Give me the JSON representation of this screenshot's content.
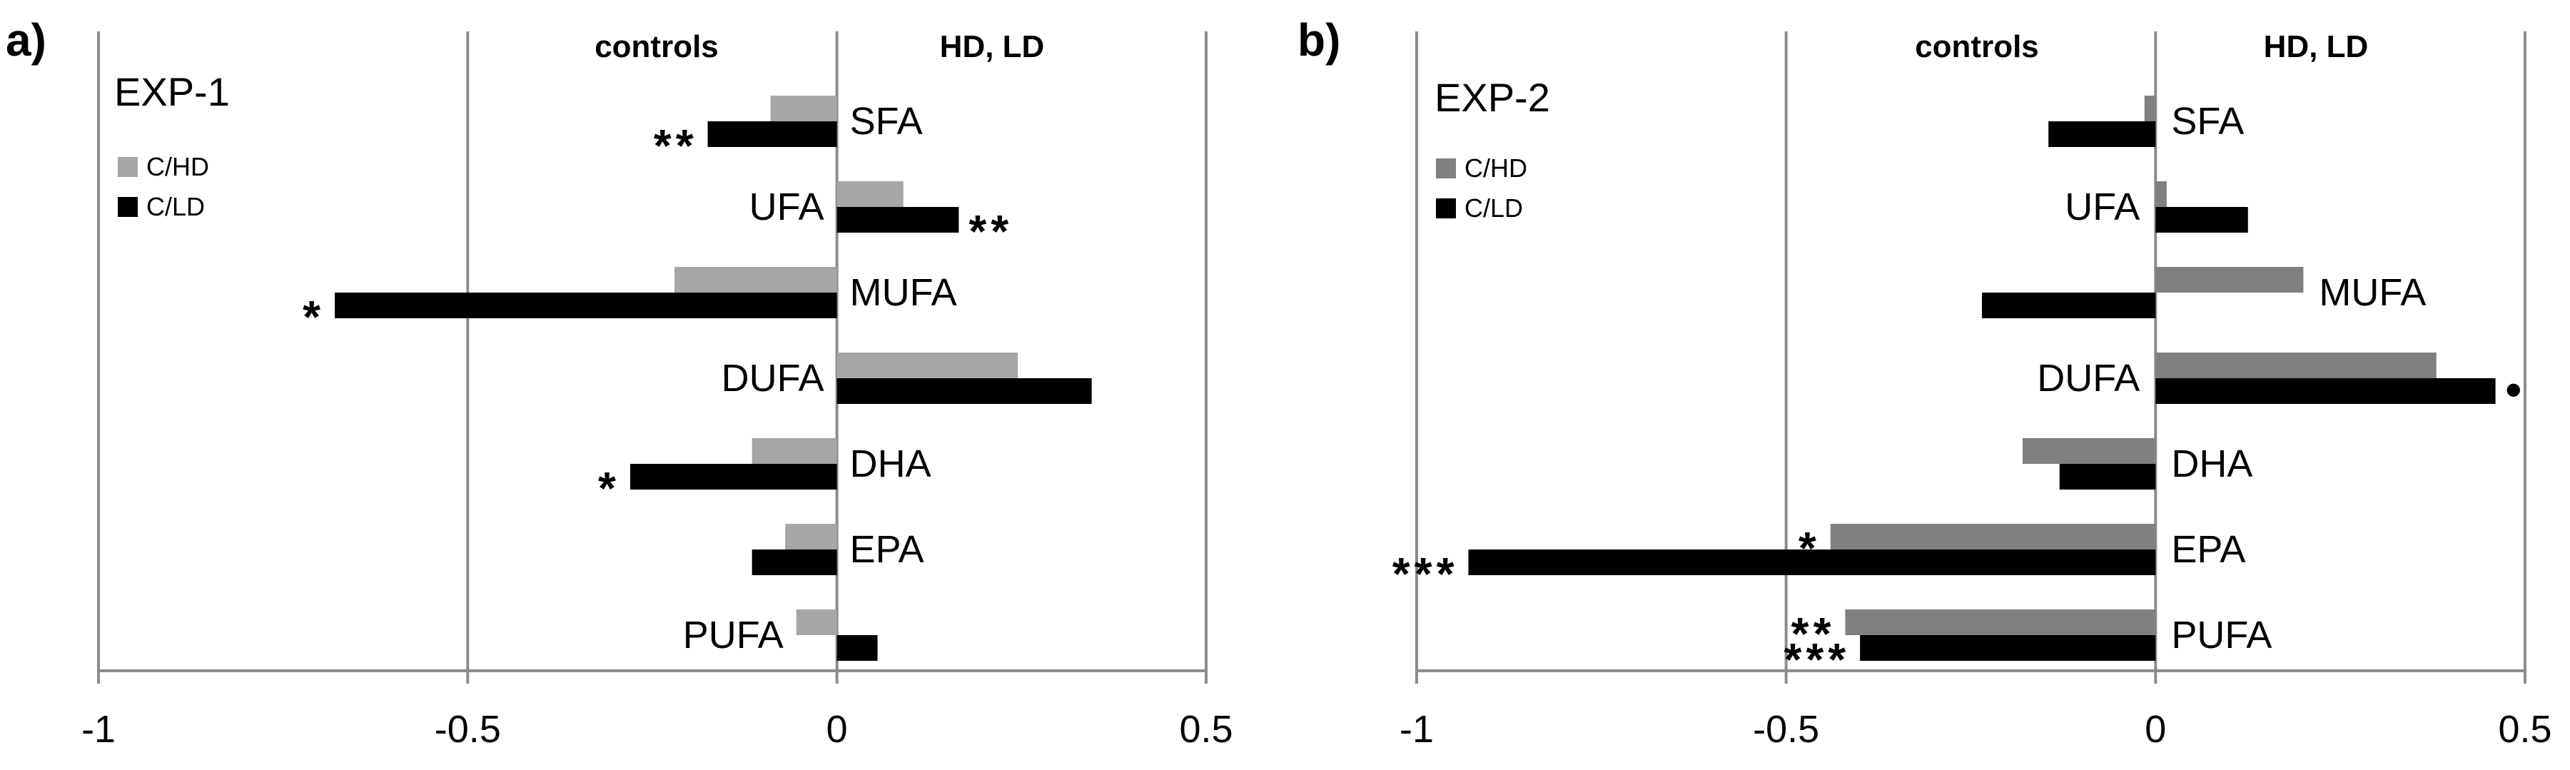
{
  "panels": [
    {
      "letter": "a)",
      "title": "EXP-1",
      "left_side_label": "controls",
      "right_side_label": "HD, LD"
    },
    {
      "letter": "b)",
      "title": "EXP-2",
      "left_side_label": "controls",
      "right_side_label": "HD, LD"
    }
  ],
  "chart_data": [
    {
      "type": "bar",
      "orientation": "horizontal",
      "title": "EXP-1",
      "categories": [
        "SFA",
        "UFA",
        "MUFA",
        "DUFA",
        "DHA",
        "EPA",
        "PUFA"
      ],
      "series": [
        {
          "name": "C/HD",
          "color": "#a6a6a6",
          "values": [
            -0.09,
            0.09,
            -0.22,
            0.245,
            -0.115,
            -0.07,
            -0.055
          ]
        },
        {
          "name": "C/LD",
          "color": "#000000",
          "values": [
            -0.175,
            0.165,
            -0.68,
            0.345,
            -0.28,
            -0.115,
            0.055
          ]
        }
      ],
      "significance": [
        {
          "category": "SFA",
          "series": "C/LD",
          "label": "**"
        },
        {
          "category": "UFA",
          "series": "C/LD",
          "label": "**"
        },
        {
          "category": "MUFA",
          "series": "C/LD",
          "label": "*"
        },
        {
          "category": "DHA",
          "series": "C/LD",
          "label": "*"
        }
      ],
      "xlim": [
        -1,
        0.5
      ],
      "xticks": [
        "-1",
        "-0.5",
        "0",
        "0.5"
      ],
      "grid": "vertical at tick values",
      "legend": "top-left"
    },
    {
      "type": "bar",
      "orientation": "horizontal",
      "title": "EXP-2",
      "categories": [
        "SFA",
        "UFA",
        "MUFA",
        "DUFA",
        "DHA",
        "EPA",
        "PUFA"
      ],
      "series": [
        {
          "name": "C/HD",
          "color": "#808080",
          "values": [
            -0.015,
            0.015,
            0.2,
            0.38,
            -0.18,
            -0.44,
            -0.42
          ]
        },
        {
          "name": "C/LD",
          "color": "#000000",
          "values": [
            -0.145,
            0.125,
            -0.235,
            0.46,
            -0.13,
            -0.93,
            -0.4
          ]
        }
      ],
      "significance": [
        {
          "category": "DUFA",
          "series": "C/LD",
          "label": "•"
        },
        {
          "category": "EPA",
          "series": "C/HD",
          "label": "*"
        },
        {
          "category": "EPA",
          "series": "C/LD",
          "label": "***"
        },
        {
          "category": "PUFA",
          "series": "C/HD",
          "label": "**"
        },
        {
          "category": "PUFA",
          "series": "C/LD",
          "label": "***"
        }
      ],
      "xlim": [
        -1,
        0.5
      ],
      "xticks": [
        "-1",
        "-0.5",
        "0",
        "0.5"
      ],
      "grid": "vertical at tick values",
      "legend": "top-left"
    }
  ]
}
